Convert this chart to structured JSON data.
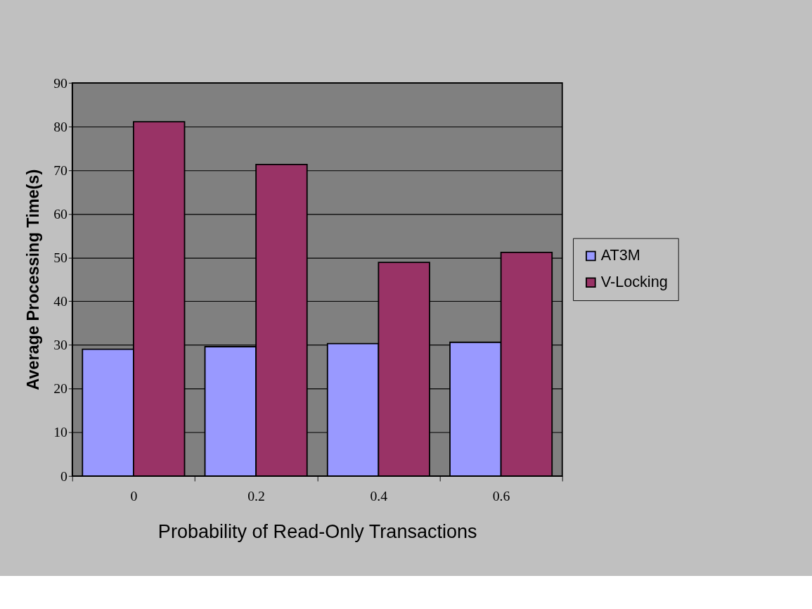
{
  "chart_data": {
    "type": "bar",
    "xlabel": "Probability of Read-Only Transactions",
    "ylabel": "Average Processing Time(s)",
    "categories": [
      "0",
      "0.2",
      "0.4",
      "0.6"
    ],
    "series": [
      {
        "name": "AT3M",
        "color": "#9999ff",
        "values": [
          29.0,
          29.6,
          30.3,
          30.6
        ]
      },
      {
        "name": "V-Locking",
        "color": "#993366",
        "values": [
          81.1,
          71.3,
          48.9,
          51.2
        ]
      }
    ],
    "ylim": [
      0,
      90
    ],
    "yticks": [
      0,
      10,
      20,
      30,
      40,
      50,
      60,
      70,
      80,
      90
    ],
    "grid": "y",
    "legend": "right"
  }
}
